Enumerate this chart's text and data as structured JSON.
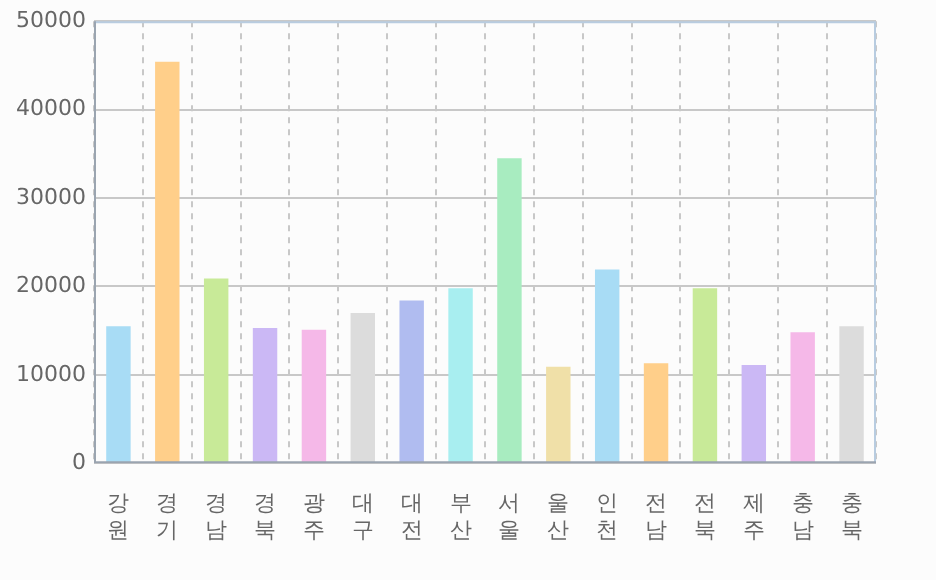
{
  "chart_data": {
    "type": "bar",
    "categories": [
      "강원",
      "경기",
      "경남",
      "경북",
      "광주",
      "대구",
      "대전",
      "부산",
      "서울",
      "울산",
      "인천",
      "전남",
      "전북",
      "제주",
      "충남",
      "충북"
    ],
    "values": [
      15500,
      45400,
      20900,
      15300,
      15100,
      17000,
      18400,
      19800,
      34500,
      10900,
      21900,
      11300,
      19800,
      11100,
      14800,
      15500
    ],
    "colors": [
      "#a8dcf5",
      "#ffcf8a",
      "#c8ea98",
      "#cbb8f5",
      "#f5b8e8",
      "#dcdcdc",
      "#b0bcf0",
      "#a8eef0",
      "#a8ecc0",
      "#f0e0a8",
      "#a8dcf5",
      "#ffcf8a",
      "#c8ea98",
      "#cbb8f5",
      "#f5b8e8",
      "#dcdcdc"
    ],
    "ylim": [
      0,
      50000
    ],
    "yticks": [
      0,
      10000,
      20000,
      30000,
      40000,
      50000
    ],
    "grid": true
  }
}
